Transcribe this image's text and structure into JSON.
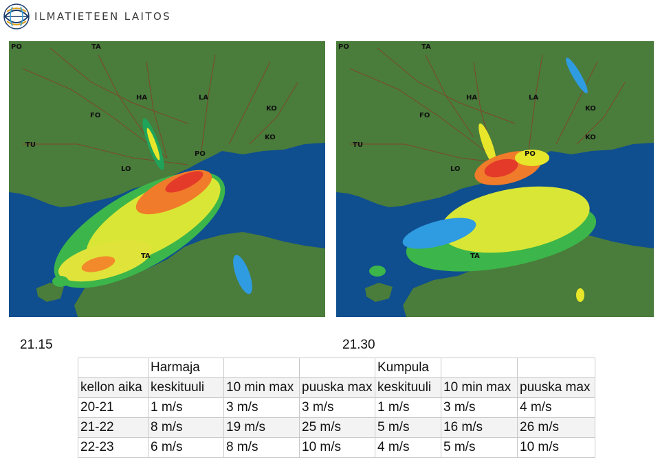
{
  "logo": {
    "text": "ILMATIETEEN LAITOS"
  },
  "maps": [
    {
      "time": "21.15",
      "labels": [
        "PO",
        "TA",
        "HA",
        "LA",
        "FO",
        "KO",
        "KO",
        "TU",
        "PO",
        "LO",
        "TA"
      ]
    },
    {
      "time": "21.30",
      "labels": [
        "PO",
        "TA",
        "HA",
        "LA",
        "FO",
        "KO",
        "KO",
        "TU",
        "PO",
        "LO",
        "TA"
      ]
    }
  ],
  "table": {
    "group_row": [
      "",
      "Harmaja",
      "",
      "",
      "Kumpula",
      "",
      ""
    ],
    "header_row": [
      "kellon aika",
      "keskituuli",
      "10 min max",
      "puuska max",
      "keskituuli",
      "10 min max",
      "puuska max"
    ],
    "rows": [
      [
        "20-21",
        "1 m/s",
        "3 m/s",
        "3 m/s",
        "1 m/s",
        "3 m/s",
        "4 m/s"
      ],
      [
        "21-22",
        "8 m/s",
        "19 m/s",
        "25 m/s",
        "5 m/s",
        "16 m/s",
        "26 m/s"
      ],
      [
        "22-23",
        "6 m/s",
        "8 m/s",
        "10 m/s",
        "4 m/s",
        "5 m/s",
        "10 m/s"
      ]
    ]
  }
}
